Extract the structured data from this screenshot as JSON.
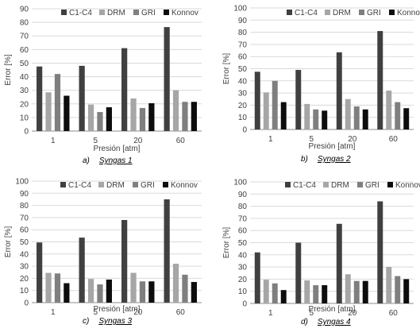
{
  "chart_data": [
    {
      "type": "bar",
      "caption_prefix": "a)",
      "caption_name": "Syngas 1",
      "xlabel": "Presión [atm]",
      "ylabel": "Error [%]",
      "ylim": [
        0,
        90
      ],
      "yticks": [
        "0",
        "10",
        "20",
        "30",
        "40",
        "50",
        "60",
        "70",
        "80",
        "90"
      ],
      "categories": [
        "1",
        "5",
        "20",
        "60"
      ],
      "series": [
        {
          "name": "C1-C4",
          "color": "#404040",
          "values": [
            47.5,
            48,
            61,
            76.5
          ]
        },
        {
          "name": "DRM",
          "color": "#a6a6a6",
          "values": [
            28.5,
            19.5,
            24,
            30
          ]
        },
        {
          "name": "GRI",
          "color": "#7f7f7f",
          "values": [
            42,
            14,
            17,
            21.5
          ]
        },
        {
          "name": "Konnov",
          "color": "#0d0d0d",
          "values": [
            26,
            17.5,
            20.5,
            21.5
          ]
        }
      ],
      "legend_position": "top"
    },
    {
      "type": "bar",
      "caption_prefix": "b)",
      "caption_name": "Syngas 2",
      "xlabel": "Presión [atm]",
      "ylabel": "Error [%]",
      "ylim": [
        0,
        100
      ],
      "yticks": [
        "0",
        "10",
        "20",
        "30",
        "40",
        "50",
        "60",
        "70",
        "80",
        "90",
        "100"
      ],
      "categories": [
        "1",
        "5",
        "20",
        "60"
      ],
      "series": [
        {
          "name": "C1-C4",
          "color": "#404040",
          "values": [
            47.5,
            49,
            63.5,
            81
          ]
        },
        {
          "name": "DRM",
          "color": "#a6a6a6",
          "values": [
            30.5,
            21,
            25,
            32
          ]
        },
        {
          "name": "GRI",
          "color": "#7f7f7f",
          "values": [
            40,
            16.5,
            19,
            22.5
          ]
        },
        {
          "name": "Konnov",
          "color": "#0d0d0d",
          "values": [
            22.5,
            15.5,
            16.5,
            17.5
          ]
        }
      ],
      "legend_position": "top"
    },
    {
      "type": "bar",
      "caption_prefix": "c)",
      "caption_name": "Syngas 3",
      "xlabel": "Presión [atm]",
      "ylabel": "Error [%]",
      "ylim": [
        0,
        100
      ],
      "yticks": [
        "0",
        "10",
        "20",
        "30",
        "40",
        "50",
        "60",
        "70",
        "80",
        "90",
        "100"
      ],
      "categories": [
        "1",
        "5",
        "20",
        "60"
      ],
      "series": [
        {
          "name": "C1-C4",
          "color": "#404040",
          "values": [
            49.5,
            53.5,
            68,
            85
          ]
        },
        {
          "name": "DRM",
          "color": "#a6a6a6",
          "values": [
            24.5,
            19.5,
            24.5,
            32
          ]
        },
        {
          "name": "GRI",
          "color": "#7f7f7f",
          "values": [
            24,
            15,
            17.5,
            23
          ]
        },
        {
          "name": "Konnov",
          "color": "#0d0d0d",
          "values": [
            16,
            19,
            17.5,
            17
          ]
        }
      ],
      "legend_position": "top"
    },
    {
      "type": "bar",
      "caption_prefix": "d)",
      "caption_name": "Syngas 4",
      "xlabel": "Presión [atm]",
      "ylabel": "Error [%]",
      "ylim": [
        0,
        100
      ],
      "yticks": [
        "0",
        "10",
        "20",
        "30",
        "40",
        "50",
        "60",
        "70",
        "80",
        "90",
        "100"
      ],
      "categories": [
        "1",
        "5",
        "20",
        "60"
      ],
      "series": [
        {
          "name": "C1-C4",
          "color": "#404040",
          "values": [
            42,
            50,
            65.5,
            84
          ]
        },
        {
          "name": "DRM",
          "color": "#a6a6a6",
          "values": [
            19.5,
            19,
            24,
            30
          ]
        },
        {
          "name": "GRI",
          "color": "#7f7f7f",
          "values": [
            16.5,
            15,
            18.5,
            22.5
          ]
        },
        {
          "name": "Konnov",
          "color": "#0d0d0d",
          "values": [
            11,
            15,
            18.5,
            20
          ]
        }
      ],
      "legend_position": "top"
    }
  ]
}
